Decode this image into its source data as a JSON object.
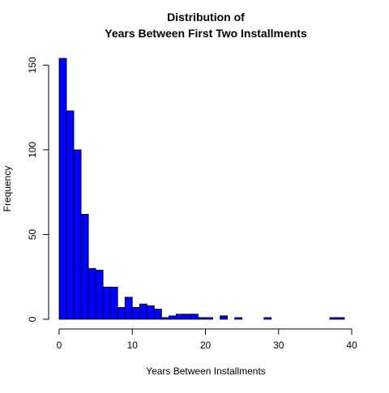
{
  "chart_data": {
    "type": "bar",
    "title_line1": "Distribution of",
    "title_line2": "Years Between First Two Installments",
    "xlabel": "Years Between Installments",
    "ylabel": "Frequency",
    "bin_width": 1,
    "bin_start": 0,
    "values": [
      154,
      123,
      100,
      62,
      30,
      29,
      19,
      19,
      7,
      13,
      7,
      9,
      8,
      6,
      1,
      2,
      3,
      3,
      3,
      1,
      1,
      0,
      2,
      0,
      1,
      0,
      0,
      0,
      1,
      0,
      0,
      0,
      0,
      0,
      0,
      0,
      0,
      1,
      1,
      0
    ],
    "xlim": [
      0,
      40
    ],
    "ylim": [
      0,
      154
    ],
    "x_ticks": [
      0,
      10,
      20,
      30,
      40
    ],
    "y_ticks": [
      0,
      50,
      100,
      150
    ],
    "bar_color": "#0000ff",
    "grid": false
  }
}
